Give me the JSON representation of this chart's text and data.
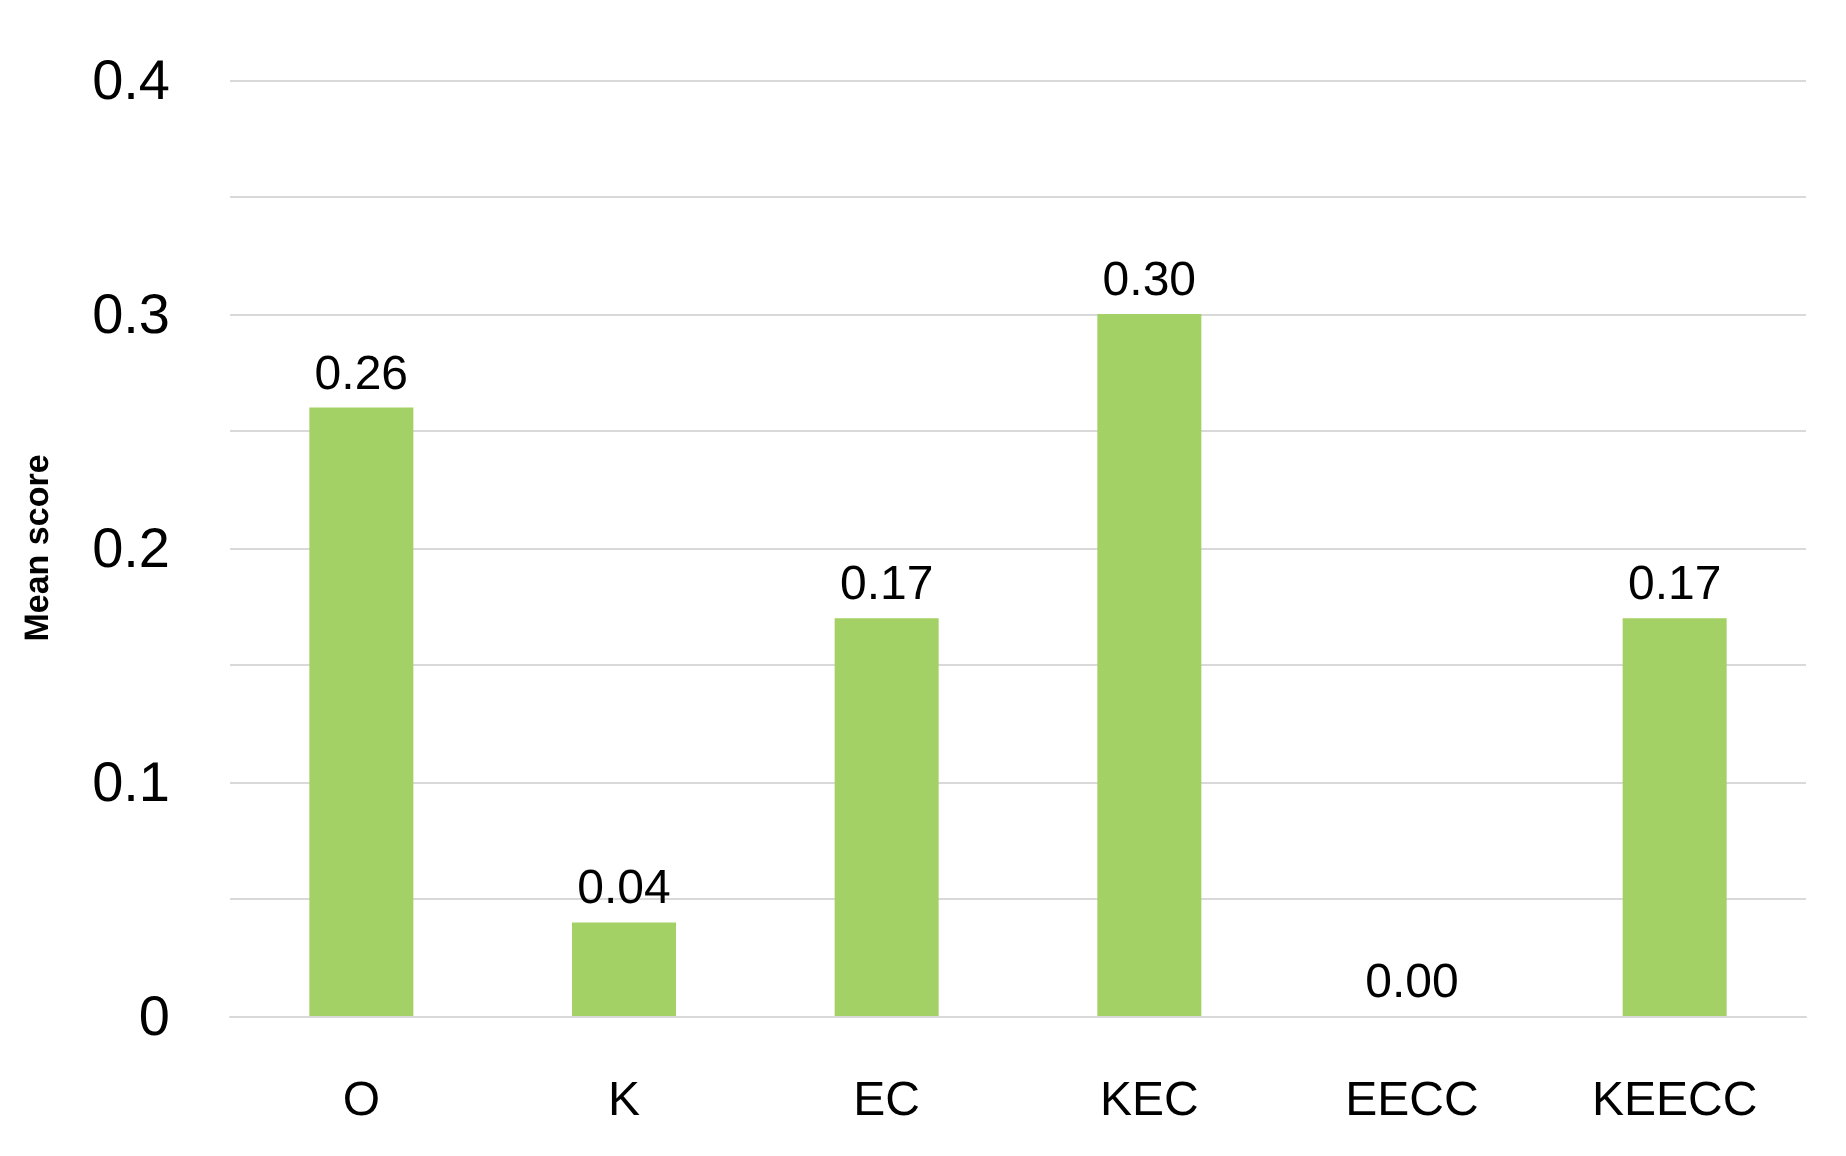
{
  "chart_data": {
    "type": "bar",
    "ylabel": "Mean score",
    "categories": [
      "O",
      "K",
      "EC",
      "KEC",
      "EECC",
      "KEECC"
    ],
    "values": [
      0.26,
      0.04,
      0.17,
      0.3,
      0.0,
      0.17
    ],
    "value_labels": [
      "0.26",
      "0.04",
      "0.17",
      "0.30",
      "0.00",
      "0.17"
    ],
    "color": "#a3d165",
    "ylim": [
      0,
      0.4
    ],
    "yticks": [
      0,
      {
        "value": 0.05,
        "label": null
      },
      0.1,
      {
        "value": 0.15,
        "label": null
      },
      0.2,
      {
        "value": 0.25,
        "label": null
      },
      0.3,
      {
        "value": 0.35,
        "label": null
      },
      0.4
    ],
    "grid": true
  }
}
